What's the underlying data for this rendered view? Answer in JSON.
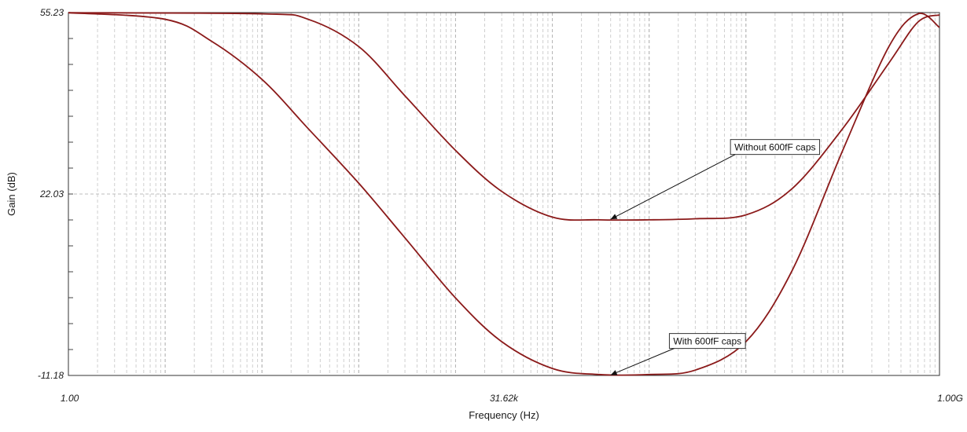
{
  "chart_data": {
    "type": "line",
    "xscale": "log",
    "xlabel": "Frequency (Hz)",
    "ylabel": "Gain (dB)",
    "xlim": [
      1,
      1000000000
    ],
    "ylim": [
      -11.18,
      55.23
    ],
    "x_ticks": [
      {
        "value": 1,
        "label": "1.00"
      },
      {
        "value": 31620,
        "label": "31.62k"
      },
      {
        "value": 1000000000,
        "label": "1.00G"
      }
    ],
    "y_ticks": [
      {
        "value": 55.23,
        "label": "55.23"
      },
      {
        "value": 22.03,
        "label": "22.03"
      },
      {
        "value": -11.18,
        "label": "-11.18"
      }
    ],
    "grid": true,
    "line_color": "#8b1a1a",
    "series": [
      {
        "x": [
          1,
          100,
          300,
          1000,
          3000,
          10000,
          30000,
          100000,
          300000,
          1000000,
          3000000,
          10000000,
          30000000,
          100000000,
          300000000,
          600000000,
          1000000000
        ],
        "y": [
          55.2,
          55.0,
          54.0,
          49.0,
          40.0,
          30.0,
          22.5,
          17.8,
          17.3,
          17.3,
          17.5,
          18.2,
          23.0,
          34.0,
          46.0,
          53.5,
          54.8
        ]
      },
      {
        "x": [
          1,
          10,
          30,
          100,
          300,
          1000,
          3000,
          10000,
          30000,
          100000,
          300000,
          1000000,
          3000000,
          10000000,
          30000000,
          100000000,
          300000000,
          600000000,
          1000000000
        ],
        "y": [
          55.2,
          54.0,
          50.0,
          43.0,
          34.0,
          24.0,
          14.0,
          3.0,
          -5.0,
          -9.9,
          -11.0,
          -11.0,
          -10.2,
          -5.0,
          8.0,
          30.0,
          49.0,
          55.0,
          52.5
        ]
      }
    ],
    "annotations": [
      {
        "text": "Without 600fF caps",
        "x": 20000000,
        "y": 30.7,
        "target_x": 400000,
        "target_y": 17.4
      },
      {
        "text": "With 600fF caps",
        "x": 4000000,
        "y": -4.8,
        "target_x": 400000,
        "target_y": -11.1
      }
    ]
  }
}
